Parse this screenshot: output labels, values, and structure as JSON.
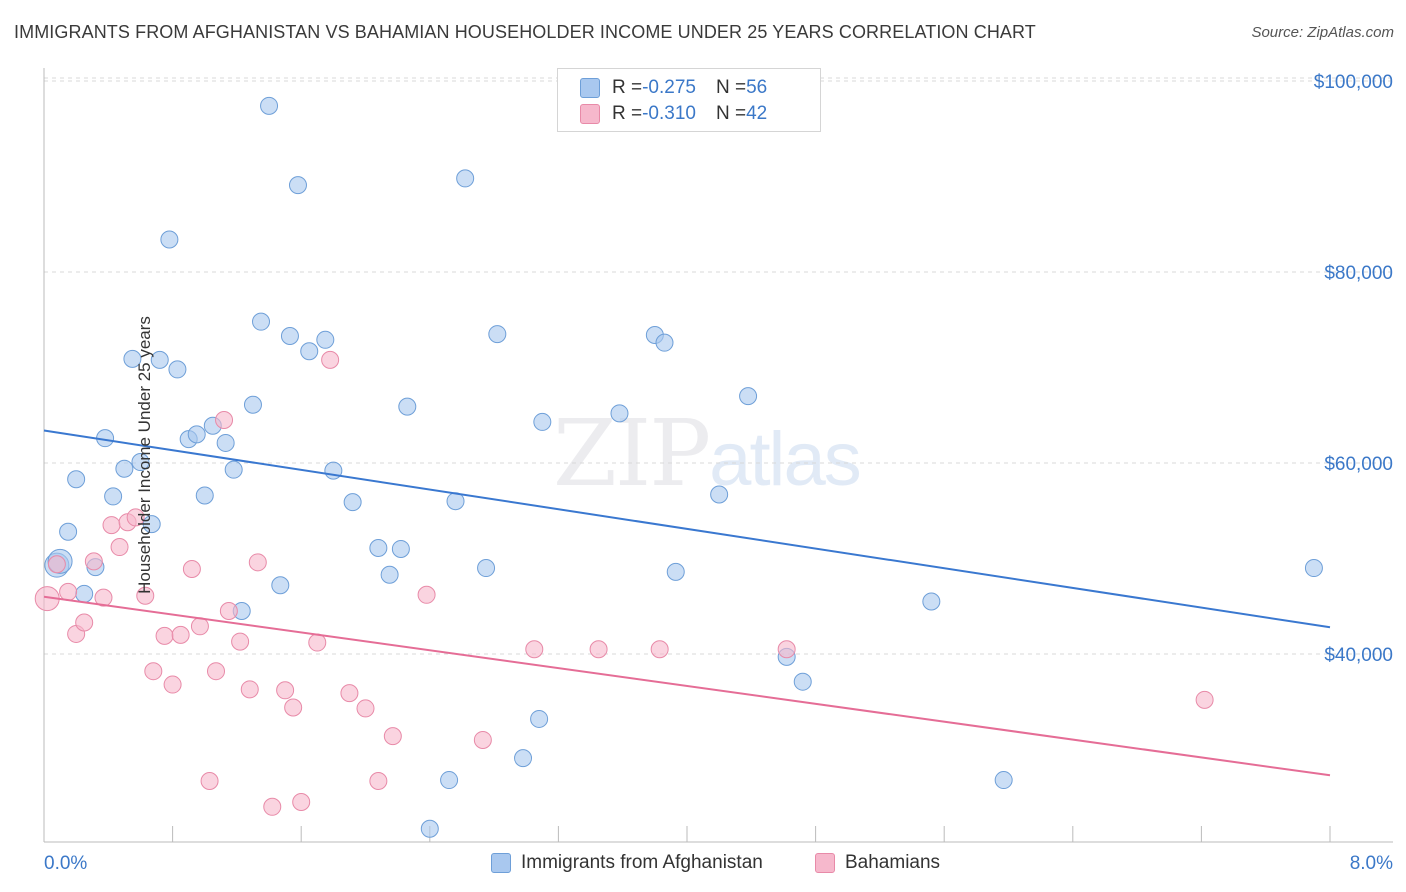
{
  "title": "IMMIGRANTS FROM AFGHANISTAN VS BAHAMIAN HOUSEHOLDER INCOME UNDER 25 YEARS CORRELATION CHART",
  "source": "Source: ZipAtlas.com",
  "watermark": {
    "zip": "ZIP",
    "atlas": "atlas"
  },
  "legend": {
    "rows": [
      {
        "r_label": "R = ",
        "r_value": "-0.275",
        "n_label": "N = ",
        "n_value": "56",
        "color": "#a9c8ef"
      },
      {
        "r_label": "R = ",
        "r_value": "-0.310",
        "n_label": "N = ",
        "n_value": "42",
        "color": "#f6b8cc"
      }
    ]
  },
  "bottom_legend": [
    "Immigrants from Afghanistan",
    "Bahamians"
  ],
  "chart_data": {
    "type": "scatter",
    "title": "IMMIGRANTS FROM AFGHANISTAN VS BAHAMIAN HOUSEHOLDER INCOME UNDER 25 YEARS CORRELATION CHART",
    "xlabel": "",
    "ylabel": "Householder Income Under 25 years",
    "xlim": [
      0,
      8
    ],
    "ylim": [
      21000,
      102000
    ],
    "x_tick_labels": [
      "0.0%",
      "8.0%"
    ],
    "y_ticks": [
      40000,
      60000,
      80000,
      100000
    ],
    "y_tick_labels": [
      "$40,000",
      "$60,000",
      "$80,000",
      "$100,000"
    ],
    "grid": true,
    "legend_position": "top-center",
    "series": [
      {
        "name": "Immigrants from Afghanistan",
        "color": "#a9c8ef",
        "stroke": "#6e9fd8",
        "trend": {
          "x": [
            0,
            8
          ],
          "y": [
            63400,
            42800
          ],
          "color": "#3a78d0"
        },
        "points": [
          [
            0.08,
            49300
          ],
          [
            0.1,
            49700
          ],
          [
            0.15,
            52800
          ],
          [
            0.2,
            58300
          ],
          [
            0.25,
            46300
          ],
          [
            0.32,
            49100
          ],
          [
            0.38,
            62600
          ],
          [
            0.43,
            56500
          ],
          [
            0.5,
            59400
          ],
          [
            0.55,
            70900
          ],
          [
            0.6,
            60100
          ],
          [
            0.67,
            53600
          ],
          [
            0.72,
            70800
          ],
          [
            0.78,
            83400
          ],
          [
            0.83,
            69800
          ],
          [
            0.9,
            62500
          ],
          [
            0.95,
            63000
          ],
          [
            1.0,
            56600
          ],
          [
            1.05,
            63900
          ],
          [
            1.13,
            62100
          ],
          [
            1.18,
            59300
          ],
          [
            1.23,
            44500
          ],
          [
            1.3,
            66100
          ],
          [
            1.35,
            74800
          ],
          [
            1.4,
            97400
          ],
          [
            1.47,
            47200
          ],
          [
            1.53,
            73300
          ],
          [
            1.58,
            89100
          ],
          [
            1.65,
            71700
          ],
          [
            1.75,
            72900
          ],
          [
            1.8,
            59200
          ],
          [
            1.92,
            55900
          ],
          [
            2.08,
            51100
          ],
          [
            2.15,
            48300
          ],
          [
            2.22,
            51000
          ],
          [
            2.26,
            65900
          ],
          [
            2.4,
            21700
          ],
          [
            2.52,
            26800
          ],
          [
            2.56,
            56000
          ],
          [
            2.62,
            89800
          ],
          [
            2.75,
            49000
          ],
          [
            2.82,
            73500
          ],
          [
            2.98,
            29100
          ],
          [
            3.08,
            33200
          ],
          [
            3.1,
            64300
          ],
          [
            3.58,
            65200
          ],
          [
            3.8,
            73400
          ],
          [
            3.86,
            72600
          ],
          [
            3.93,
            48600
          ],
          [
            4.2,
            56700
          ],
          [
            4.38,
            67000
          ],
          [
            4.62,
            39700
          ],
          [
            4.72,
            37100
          ],
          [
            5.52,
            45500
          ],
          [
            5.97,
            26800
          ],
          [
            7.9,
            49000
          ]
        ]
      },
      {
        "name": "Bahamians",
        "color": "#f6b8cc",
        "stroke": "#e88aa8",
        "trend": {
          "x": [
            0,
            8
          ],
          "y": [
            46000,
            27300
          ],
          "color": "#e56d96"
        },
        "points": [
          [
            0.02,
            45800
          ],
          [
            0.08,
            49400
          ],
          [
            0.15,
            46500
          ],
          [
            0.2,
            42100
          ],
          [
            0.25,
            43300
          ],
          [
            0.31,
            49700
          ],
          [
            0.37,
            45900
          ],
          [
            0.42,
            53500
          ],
          [
            0.47,
            51200
          ],
          [
            0.52,
            53800
          ],
          [
            0.57,
            54300
          ],
          [
            0.63,
            46100
          ],
          [
            0.68,
            38200
          ],
          [
            0.75,
            41900
          ],
          [
            0.8,
            36800
          ],
          [
            0.85,
            42000
          ],
          [
            0.92,
            48900
          ],
          [
            0.97,
            42900
          ],
          [
            1.03,
            26700
          ],
          [
            1.07,
            38200
          ],
          [
            1.12,
            64500
          ],
          [
            1.15,
            44500
          ],
          [
            1.22,
            41300
          ],
          [
            1.28,
            36300
          ],
          [
            1.33,
            49600
          ],
          [
            1.42,
            24000
          ],
          [
            1.5,
            36200
          ],
          [
            1.55,
            34400
          ],
          [
            1.6,
            24500
          ],
          [
            1.7,
            41200
          ],
          [
            1.78,
            70800
          ],
          [
            1.9,
            35900
          ],
          [
            2.0,
            34300
          ],
          [
            2.08,
            26700
          ],
          [
            2.17,
            31400
          ],
          [
            2.38,
            46200
          ],
          [
            2.73,
            31000
          ],
          [
            3.05,
            40500
          ],
          [
            3.45,
            40500
          ],
          [
            3.83,
            40500
          ],
          [
            4.62,
            40500
          ],
          [
            7.22,
            35200
          ]
        ]
      }
    ]
  }
}
